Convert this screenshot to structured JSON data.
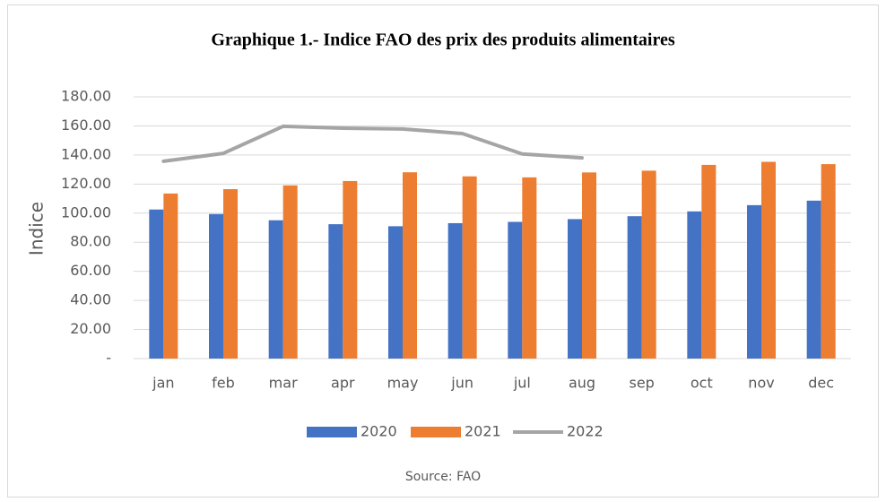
{
  "chart_data": {
    "type": "bar",
    "title": "Graphique 1.- Indice FAO des prix des produits alimentaires",
    "y_label": "Indice",
    "source": "Source: FAO",
    "categories": [
      "jan",
      "feb",
      "mar",
      "apr",
      "may",
      "jun",
      "jul",
      "aug",
      "sep",
      "oct",
      "nov",
      "dec"
    ],
    "series": [
      {
        "name": "2020",
        "color": "#4472c4",
        "type": "bar",
        "values": [
          102.5,
          99.4,
          95.1,
          92.4,
          91.0,
          93.1,
          94.0,
          95.9,
          97.9,
          101.2,
          105.5,
          108.6
        ]
      },
      {
        "name": "2021",
        "color": "#ed7d31",
        "type": "bar",
        "values": [
          113.5,
          116.5,
          119.1,
          122.1,
          128.1,
          125.3,
          124.6,
          128.0,
          129.2,
          133.2,
          135.3,
          133.7
        ]
      },
      {
        "name": "2022",
        "color": "#a5a5a5",
        "type": "line",
        "values": [
          135.7,
          141.1,
          159.7,
          158.4,
          157.9,
          154.7,
          140.7,
          138.0,
          null,
          null,
          null,
          null
        ]
      }
    ],
    "ylim": [
      0,
      180
    ],
    "yticks": [
      {
        "value": 0,
        "label": "-"
      },
      {
        "value": 20,
        "label": "20.00"
      },
      {
        "value": 40,
        "label": "40.00"
      },
      {
        "value": 60,
        "label": "60.00"
      },
      {
        "value": 80,
        "label": "80.00"
      },
      {
        "value": 100,
        "label": "100.00"
      },
      {
        "value": 120,
        "label": "120.00"
      },
      {
        "value": 140,
        "label": "140.00"
      },
      {
        "value": 160,
        "label": "160.00"
      },
      {
        "value": 180,
        "label": "180.00"
      }
    ],
    "grid": true,
    "legend": "bottom"
  }
}
